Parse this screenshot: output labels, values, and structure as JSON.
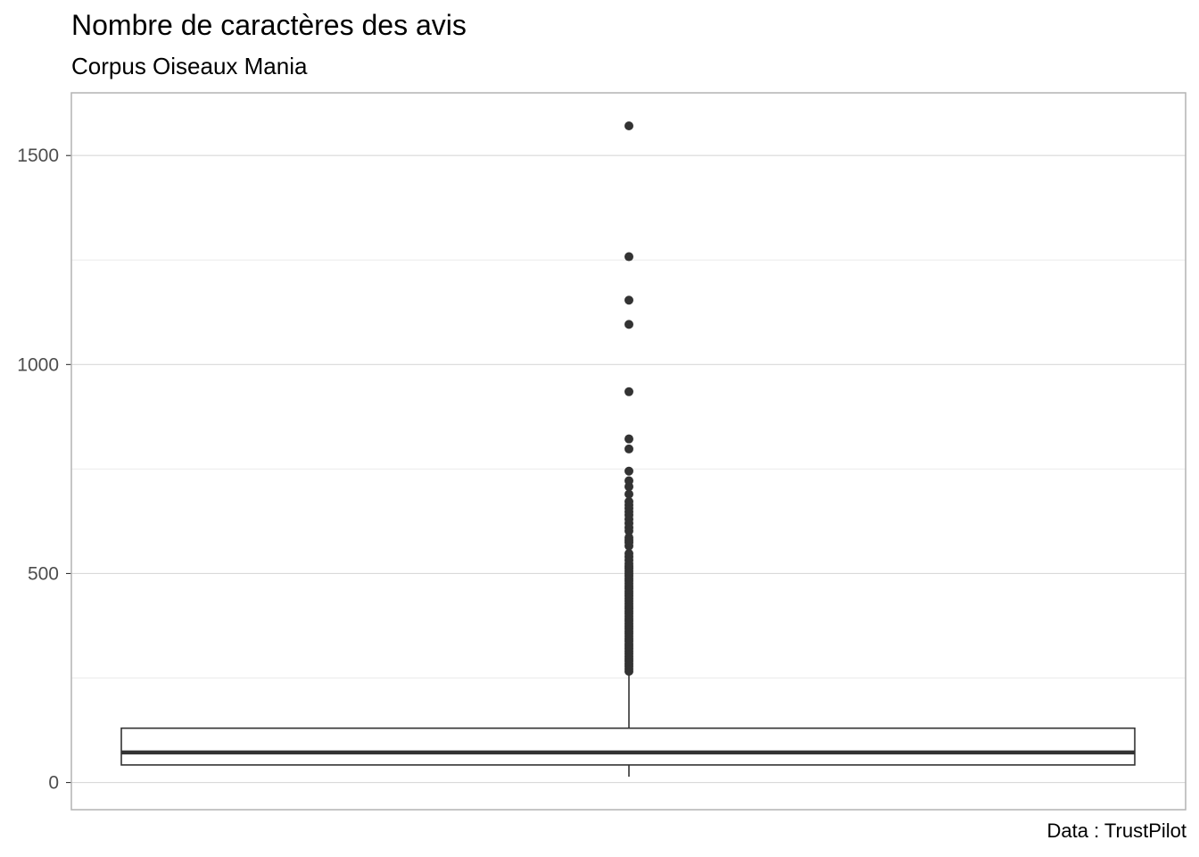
{
  "chart_data": {
    "type": "boxplot",
    "title": "Nombre de caractères des avis",
    "subtitle": "Corpus Oiseaux Mania",
    "caption": "Data : TrustPilot",
    "xlabel": "",
    "ylabel": "",
    "ylim": [
      -65,
      1650
    ],
    "y_ticks": [
      0,
      500,
      1000,
      1500
    ],
    "y_minor_ticks": [
      250,
      750,
      1250
    ],
    "grid": true,
    "legend": "none",
    "box": {
      "whisker_low": 14,
      "q1": 42,
      "median": 72,
      "q3": 130,
      "whisker_high": 262
    },
    "outliers": [
      266,
      272,
      278,
      284,
      290,
      296,
      302,
      308,
      314,
      320,
      326,
      332,
      338,
      344,
      350,
      356,
      362,
      368,
      374,
      380,
      386,
      392,
      398,
      404,
      410,
      416,
      422,
      428,
      434,
      440,
      446,
      452,
      458,
      464,
      470,
      476,
      482,
      488,
      494,
      500,
      506,
      512,
      518,
      524,
      532,
      540,
      548,
      566,
      574,
      580,
      586,
      602,
      610,
      620,
      630,
      640,
      648,
      656,
      664,
      672,
      690,
      708,
      722,
      745,
      798,
      822,
      935,
      1096,
      1154,
      1258,
      1571
    ],
    "colors": {
      "box_line": "#333333",
      "outlier": "#333333",
      "grid_major": "#d9d9d9",
      "grid_minor": "#ebebeb",
      "panel_border": "#b3b3b3",
      "tick_text": "#4d4d4d"
    }
  }
}
